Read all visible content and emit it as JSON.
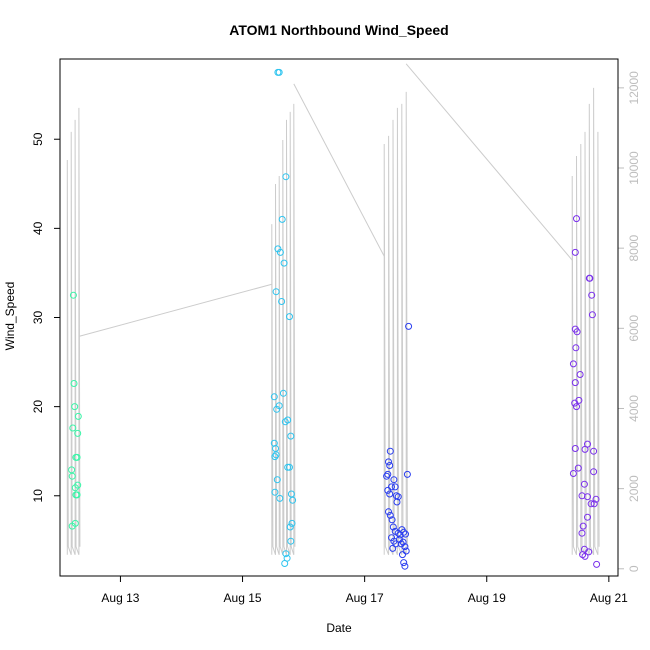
{
  "chart_data": {
    "type": "scatter",
    "title": "ATOM1 Northbound Wind_Speed",
    "xlabel": "Date",
    "ylabel": "Wind_Speed",
    "x_ticks": [
      "Aug 13",
      "Aug 15",
      "Aug 17",
      "Aug 19",
      "Aug 21"
    ],
    "y_ticks": [
      "10",
      "20",
      "30",
      "40",
      "50"
    ],
    "y2_ticks": [
      "0",
      "2000",
      "4000",
      "6000",
      "8000",
      "10000",
      "12000"
    ],
    "ylim": [
      1.0,
      59.0
    ],
    "y2lim": [
      -180,
      12720
    ],
    "xlim_day": [
      12.01,
      21.15
    ],
    "grid": false,
    "legend": "none",
    "colors": {
      "line_overlay": "#cccccc",
      "group1": "#3af5a8",
      "group2": "#2ec4ef",
      "group3": "#2a3ef0",
      "group4": "#7a30ec",
      "frame": "#000000",
      "right_axis": "#bdbdbd"
    },
    "series": [
      {
        "color": "#3af5a8",
        "points": [
          [
            12.23,
            32.5
          ],
          [
            12.24,
            22.6
          ],
          [
            12.25,
            20.0
          ],
          [
            12.22,
            17.6
          ],
          [
            12.27,
            14.3
          ],
          [
            12.29,
            14.3
          ],
          [
            12.2,
            12.9
          ],
          [
            12.21,
            12.2
          ],
          [
            12.26,
            10.9
          ],
          [
            12.3,
            11.2
          ],
          [
            12.27,
            10.1
          ],
          [
            12.29,
            10.1
          ],
          [
            12.21,
            6.6
          ],
          [
            12.26,
            6.9
          ],
          [
            12.31,
            18.9
          ],
          [
            12.3,
            17.0
          ]
        ]
      },
      {
        "color": "#2ec4ef",
        "points": [
          [
            15.6,
            57.5
          ],
          [
            15.58,
            57.5
          ],
          [
            15.71,
            45.8
          ],
          [
            15.65,
            41.0
          ],
          [
            15.58,
            37.7
          ],
          [
            15.62,
            37.3
          ],
          [
            15.68,
            36.1
          ],
          [
            15.55,
            32.9
          ],
          [
            15.64,
            31.8
          ],
          [
            15.77,
            30.1
          ],
          [
            15.52,
            21.1
          ],
          [
            15.67,
            21.5
          ],
          [
            15.6,
            20.1
          ],
          [
            15.56,
            19.7
          ],
          [
            15.7,
            18.3
          ],
          [
            15.74,
            18.5
          ],
          [
            15.79,
            16.7
          ],
          [
            15.52,
            15.9
          ],
          [
            15.54,
            15.3
          ],
          [
            15.55,
            14.6
          ],
          [
            15.53,
            14.4
          ],
          [
            15.74,
            13.2
          ],
          [
            15.77,
            13.2
          ],
          [
            15.57,
            11.8
          ],
          [
            15.53,
            10.4
          ],
          [
            15.61,
            9.7
          ],
          [
            15.8,
            10.2
          ],
          [
            15.82,
            9.5
          ],
          [
            15.71,
            3.5
          ],
          [
            15.73,
            3.0
          ],
          [
            15.69,
            2.4
          ],
          [
            15.78,
            6.5
          ],
          [
            15.81,
            6.9
          ],
          [
            15.79,
            4.9
          ]
        ]
      },
      {
        "color": "#2a3ef0",
        "points": [
          [
            17.42,
            15.0
          ],
          [
            17.39,
            13.8
          ],
          [
            17.41,
            13.4
          ],
          [
            17.38,
            12.4
          ],
          [
            17.36,
            12.2
          ],
          [
            17.48,
            11.8
          ],
          [
            17.44,
            11.0
          ],
          [
            17.38,
            10.6
          ],
          [
            17.41,
            10.2
          ],
          [
            17.5,
            11.0
          ],
          [
            17.52,
            10.0
          ],
          [
            17.53,
            9.3
          ],
          [
            17.55,
            9.9
          ],
          [
            17.7,
            12.4
          ],
          [
            17.72,
            29.0
          ],
          [
            17.39,
            8.2
          ],
          [
            17.42,
            7.8
          ],
          [
            17.45,
            7.3
          ],
          [
            17.47,
            6.5
          ],
          [
            17.5,
            6.0
          ],
          [
            17.55,
            5.8
          ],
          [
            17.58,
            5.6
          ],
          [
            17.61,
            6.2
          ],
          [
            17.64,
            5.9
          ],
          [
            17.67,
            5.7
          ],
          [
            17.44,
            5.3
          ],
          [
            17.48,
            4.9
          ],
          [
            17.51,
            4.6
          ],
          [
            17.57,
            5.1
          ],
          [
            17.6,
            4.6
          ],
          [
            17.46,
            4.1
          ],
          [
            17.63,
            4.8
          ],
          [
            17.66,
            4.3
          ],
          [
            17.62,
            3.4
          ],
          [
            17.68,
            3.8
          ],
          [
            17.64,
            2.5
          ],
          [
            17.66,
            2.1
          ]
        ]
      },
      {
        "color": "#7a30ec",
        "points": [
          [
            20.47,
            41.1
          ],
          [
            20.45,
            37.3
          ],
          [
            20.68,
            34.4
          ],
          [
            20.69,
            34.4
          ],
          [
            20.72,
            32.5
          ],
          [
            20.73,
            30.3
          ],
          [
            20.45,
            28.7
          ],
          [
            20.48,
            28.4
          ],
          [
            20.46,
            26.6
          ],
          [
            20.42,
            24.8
          ],
          [
            20.53,
            23.6
          ],
          [
            20.45,
            22.7
          ],
          [
            20.51,
            20.7
          ],
          [
            20.44,
            20.4
          ],
          [
            20.47,
            20.0
          ],
          [
            20.45,
            15.3
          ],
          [
            20.65,
            15.8
          ],
          [
            20.61,
            15.2
          ],
          [
            20.75,
            15.0
          ],
          [
            20.5,
            13.1
          ],
          [
            20.42,
            12.5
          ],
          [
            20.75,
            12.7
          ],
          [
            20.6,
            11.3
          ],
          [
            20.56,
            10.0
          ],
          [
            20.65,
            9.9
          ],
          [
            20.79,
            9.6
          ],
          [
            20.71,
            9.1
          ],
          [
            20.76,
            9.1
          ],
          [
            20.65,
            7.6
          ],
          [
            20.58,
            6.6
          ],
          [
            20.56,
            5.8
          ],
          [
            20.6,
            4.0
          ],
          [
            20.57,
            3.4
          ],
          [
            20.61,
            3.2
          ],
          [
            20.67,
            3.7
          ],
          [
            20.8,
            2.3
          ]
        ]
      }
    ],
    "overlay": {
      "color": "#cccccc",
      "clusters": [
        {
          "x0": 12.13,
          "x1": 12.32,
          "peaks": [
            10200,
            10900,
            11200,
            11500
          ]
        },
        {
          "x0": 15.48,
          "x1": 15.84,
          "peaks": [
            8600,
            9600,
            9800,
            10700,
            11200,
            11400,
            11600
          ]
        },
        {
          "x0": 17.32,
          "x1": 17.68,
          "peaks": [
            10600,
            10800,
            11200,
            11500,
            11600,
            11900
          ]
        },
        {
          "x0": 20.4,
          "x1": 20.82,
          "peaks": [
            9800,
            10300,
            10600,
            10900,
            11600,
            12000,
            10900
          ]
        }
      ],
      "connectors": [
        [
          [
            12.32,
            5800
          ],
          [
            15.48,
            7100
          ]
        ],
        [
          [
            15.84,
            12100
          ],
          [
            17.32,
            7800
          ]
        ],
        [
          [
            17.68,
            12600
          ],
          [
            20.4,
            7700
          ]
        ]
      ],
      "low": 350
    }
  }
}
